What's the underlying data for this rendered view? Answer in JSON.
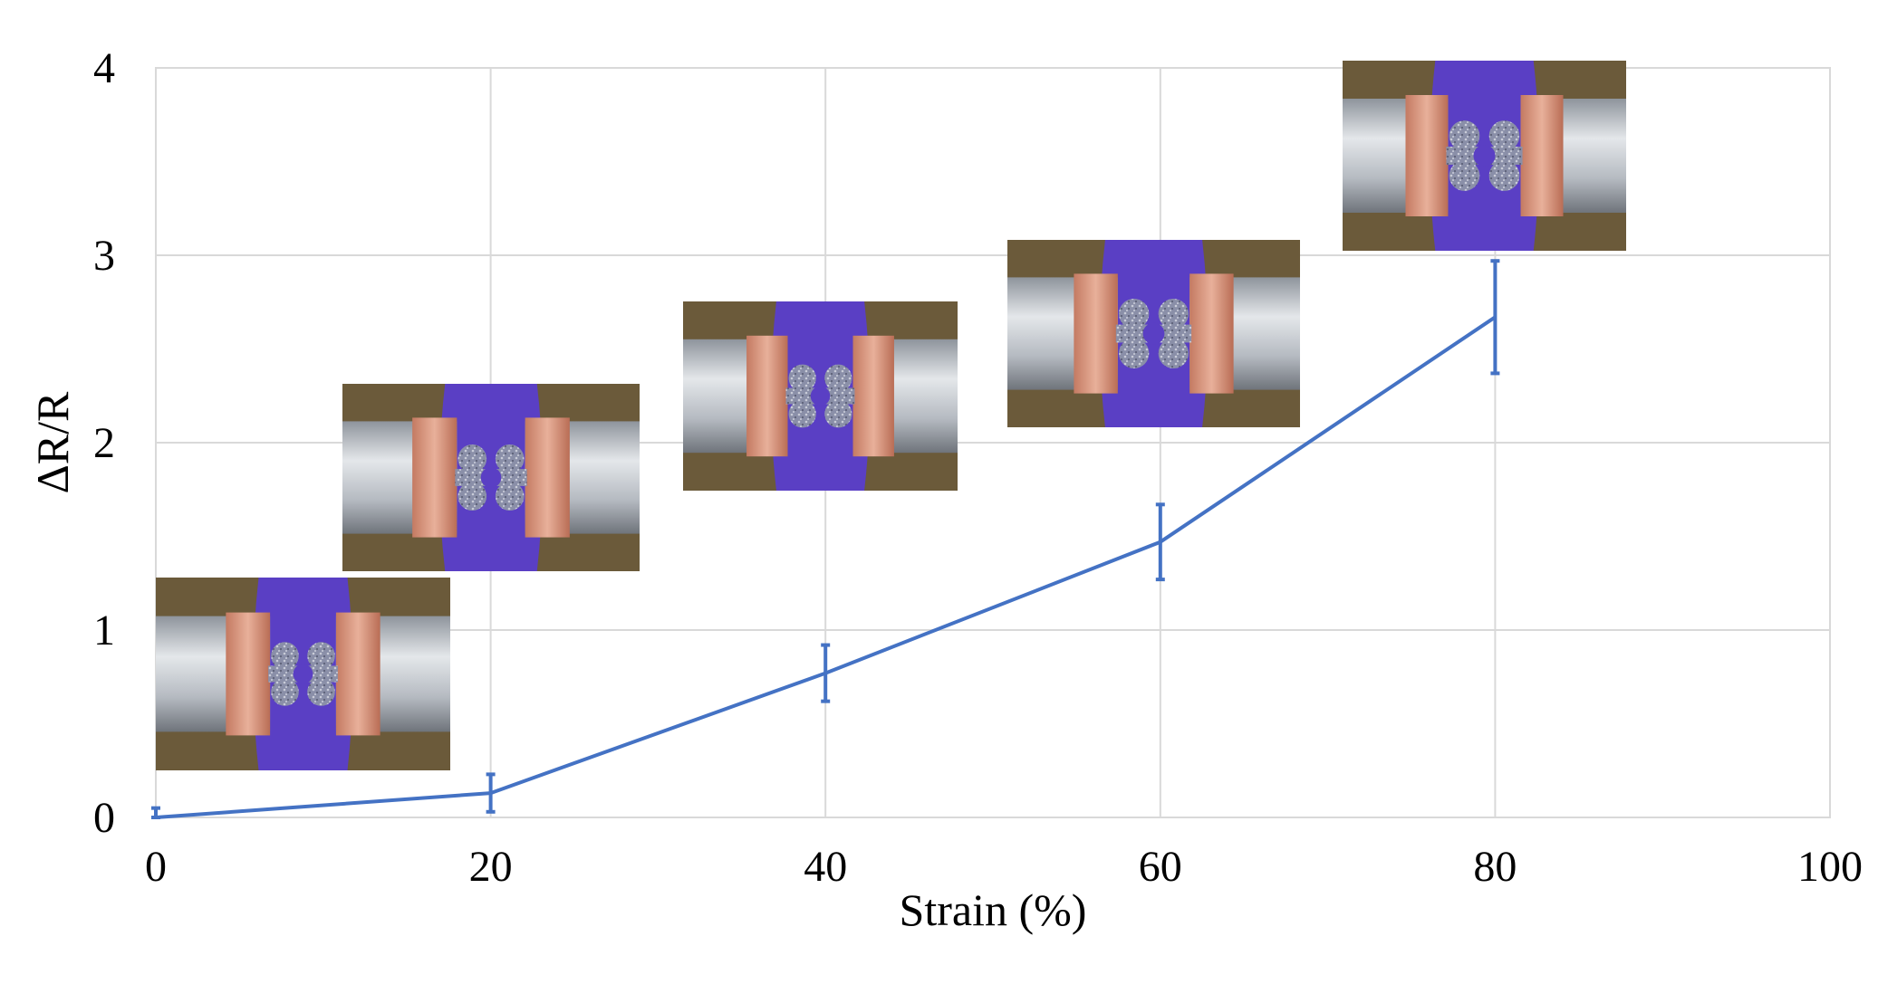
{
  "chart_data": {
    "type": "line",
    "title": "",
    "xlabel": "Strain (%)",
    "ylabel": "ΔR/R",
    "xlim": [
      0,
      100
    ],
    "ylim": [
      0,
      4
    ],
    "xticks": [
      0,
      20,
      40,
      60,
      80,
      100
    ],
    "yticks": [
      0,
      1,
      2,
      3,
      4
    ],
    "grid": true,
    "series": [
      {
        "name": "ΔR/R",
        "color": "#4472C4",
        "x": [
          0,
          20,
          40,
          60,
          80
        ],
        "y": [
          0.0,
          0.13,
          0.77,
          1.47,
          2.67
        ],
        "error": [
          0.05,
          0.1,
          0.15,
          0.2,
          0.3
        ]
      }
    ],
    "annotations": [
      {
        "type": "photo-inset",
        "near_strain": 0,
        "description": "sample-photo-0"
      },
      {
        "type": "photo-inset",
        "near_strain": 20,
        "description": "sample-photo-20"
      },
      {
        "type": "photo-inset",
        "near_strain": 40,
        "description": "sample-photo-40"
      },
      {
        "type": "photo-inset",
        "near_strain": 60,
        "description": "sample-photo-60"
      },
      {
        "type": "photo-inset",
        "near_strain": 80,
        "description": "sample-photo-80"
      }
    ]
  },
  "colors": {
    "line": "#4472C4",
    "grid": "#d9d9d9",
    "fabric": "#5a3fc4",
    "copper": "#d8947a",
    "clamp": "#c8ccd2",
    "background_board": "#6b5a3a"
  }
}
